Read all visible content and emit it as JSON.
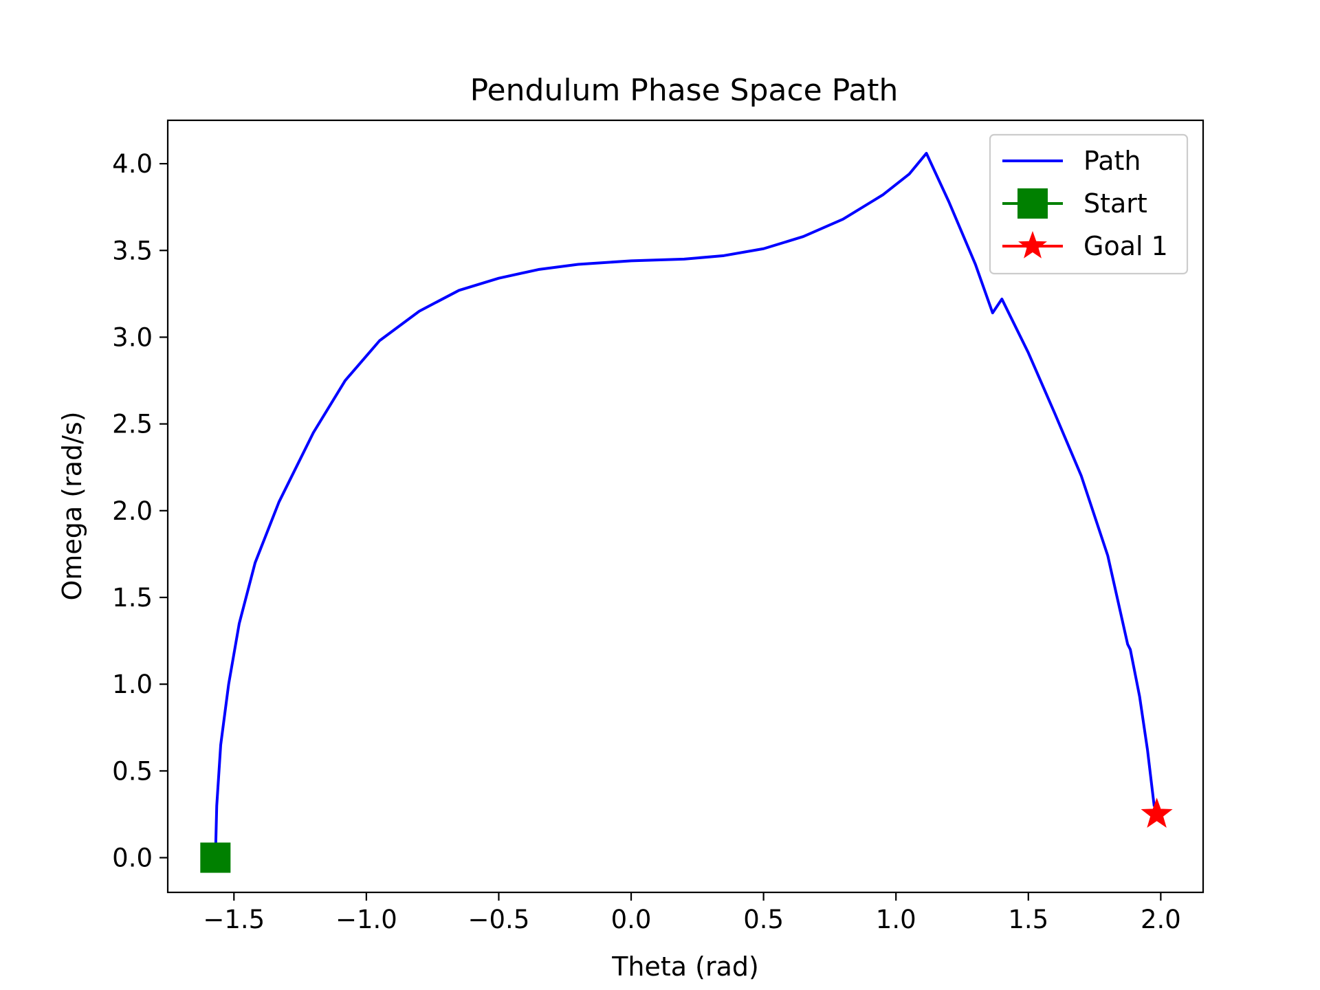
{
  "chart_data": {
    "type": "line",
    "title": "Pendulum Phase Space Path",
    "xlabel": "Theta (rad)",
    "ylabel": "Omega (rad/s)",
    "xlim": [
      -1.75,
      2.16
    ],
    "ylim": [
      -0.2,
      4.25
    ],
    "xticks": [
      -1.5,
      -1.0,
      -0.5,
      0.0,
      0.5,
      1.0,
      1.5,
      2.0
    ],
    "xtick_labels": [
      "−1.5",
      "−1.0",
      "−0.5",
      "0.0",
      "0.5",
      "1.0",
      "1.5",
      "2.0"
    ],
    "yticks": [
      0.0,
      0.5,
      1.0,
      1.5,
      2.0,
      2.5,
      3.0,
      3.5,
      4.0
    ],
    "ytick_labels": [
      "0.0",
      "0.5",
      "1.0",
      "1.5",
      "2.0",
      "2.5",
      "3.0",
      "3.5",
      "4.0"
    ],
    "grid": false,
    "legend_position": "top-right",
    "series": [
      {
        "name": "Path",
        "color": "#0000ff",
        "marker": "none",
        "points": [
          [
            -1.57,
            0.0
          ],
          [
            -1.565,
            0.3
          ],
          [
            -1.55,
            0.65
          ],
          [
            -1.52,
            1.0
          ],
          [
            -1.48,
            1.35
          ],
          [
            -1.42,
            1.7
          ],
          [
            -1.33,
            2.05
          ],
          [
            -1.2,
            2.45
          ],
          [
            -1.08,
            2.75
          ],
          [
            -0.95,
            2.98
          ],
          [
            -0.8,
            3.15
          ],
          [
            -0.65,
            3.27
          ],
          [
            -0.5,
            3.34
          ],
          [
            -0.35,
            3.39
          ],
          [
            -0.2,
            3.42
          ],
          [
            0.0,
            3.44
          ],
          [
            0.2,
            3.45
          ],
          [
            0.35,
            3.47
          ],
          [
            0.5,
            3.51
          ],
          [
            0.65,
            3.58
          ],
          [
            0.8,
            3.68
          ],
          [
            0.95,
            3.82
          ],
          [
            1.05,
            3.94
          ],
          [
            1.115,
            4.06
          ],
          [
            1.2,
            3.78
          ],
          [
            1.3,
            3.42
          ],
          [
            1.365,
            3.14
          ],
          [
            1.4,
            3.22
          ],
          [
            1.5,
            2.91
          ],
          [
            1.6,
            2.56
          ],
          [
            1.7,
            2.2
          ],
          [
            1.8,
            1.74
          ],
          [
            1.875,
            1.23
          ],
          [
            1.885,
            1.2
          ],
          [
            1.92,
            0.93
          ],
          [
            1.95,
            0.62
          ],
          [
            1.975,
            0.3
          ]
        ]
      },
      {
        "name": "Start",
        "color": "#008000",
        "marker": "square",
        "points": [
          [
            -1.57,
            0.0
          ]
        ]
      },
      {
        "name": "Goal 1",
        "color": "#ff0000",
        "marker": "star",
        "points": [
          [
            1.985,
            0.25
          ]
        ]
      }
    ]
  }
}
